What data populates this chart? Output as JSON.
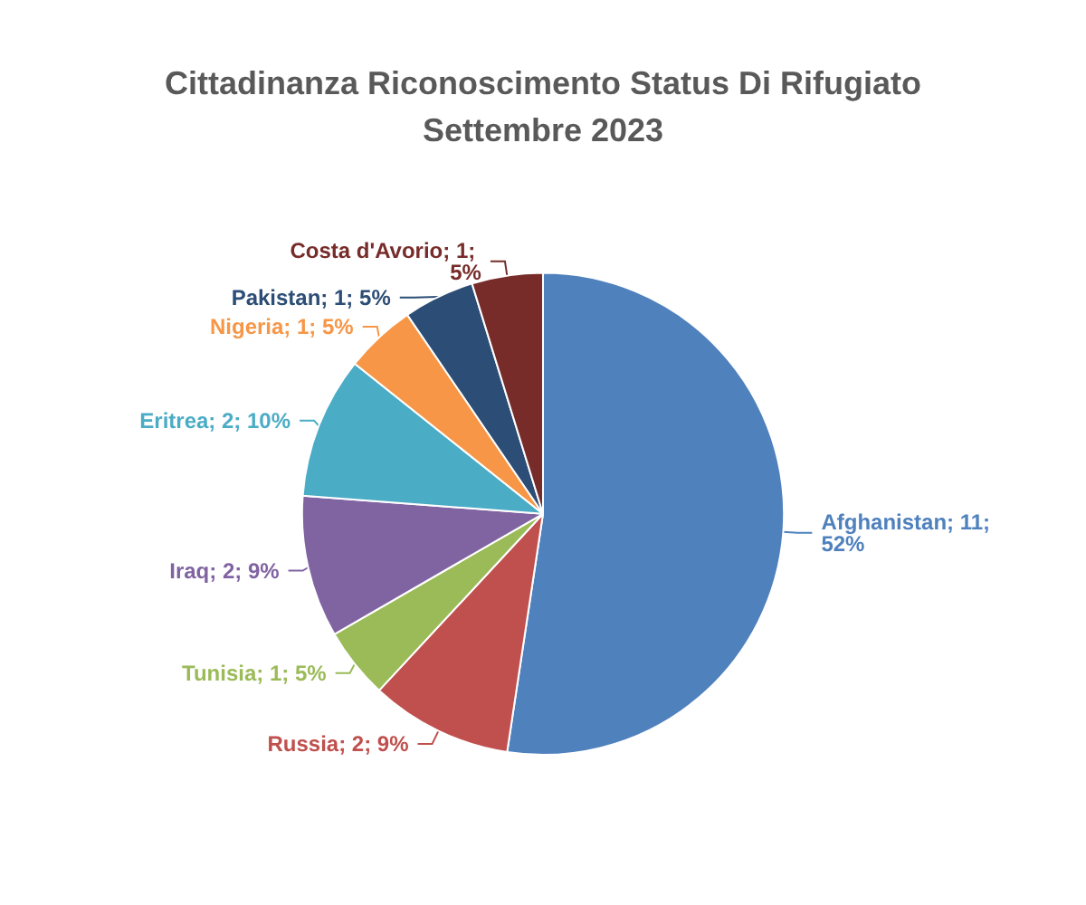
{
  "chart_data": {
    "type": "pie",
    "title": "Cittadinanza Riconoscimento Status Di Rifugiato\nSettembre 2023",
    "categories": [
      "Afghanistan",
      "Russia",
      "Tunisia",
      "Iraq",
      "Eritrea",
      "Nigeria",
      "Pakistan",
      "Costa d'Avorio"
    ],
    "values": [
      11,
      2,
      1,
      2,
      2,
      1,
      1,
      1
    ],
    "value_labels": [
      "11; 52%",
      "2; 9%",
      "1; 5%",
      "2; 9%",
      "2; 10%",
      "1; 5%",
      "1; 5%",
      "1; 5%"
    ],
    "colors": [
      "#4f81bd",
      "#c0504d",
      "#9bbb59",
      "#8064a2",
      "#4bacc6",
      "#f79646",
      "#2c4d75",
      "#772c2a"
    ],
    "legend": false
  }
}
